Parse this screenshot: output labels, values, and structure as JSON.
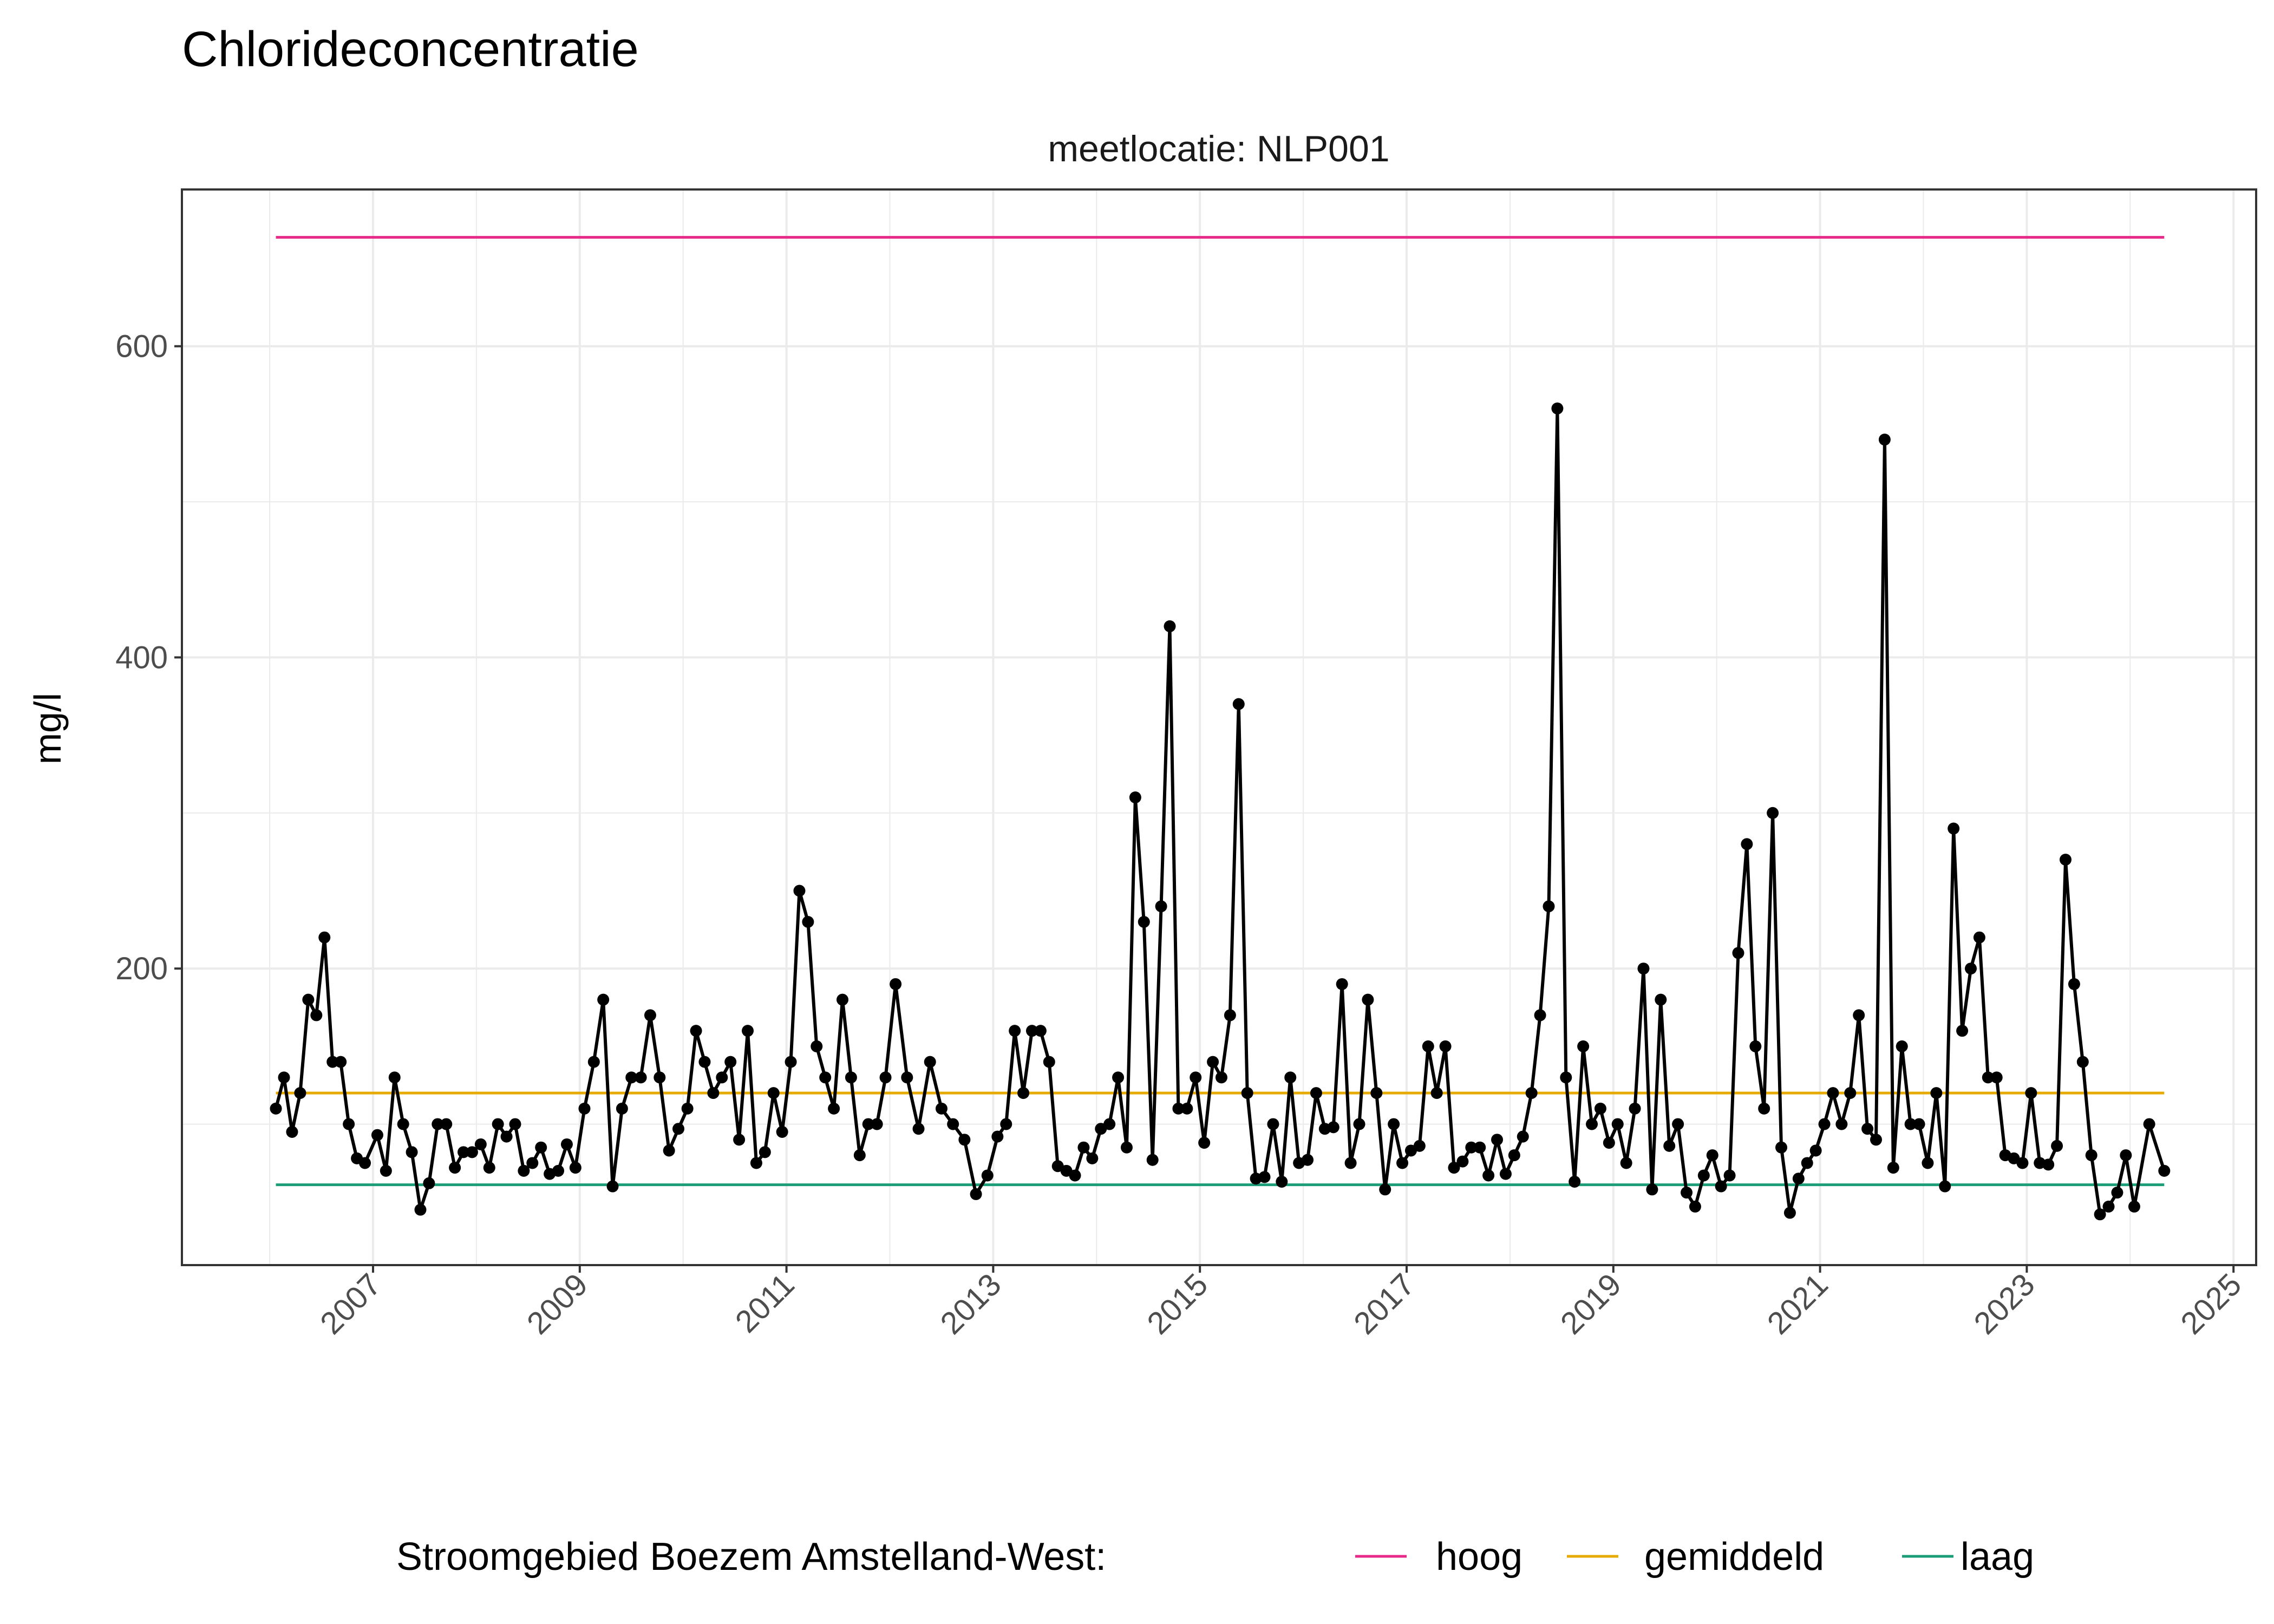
{
  "chart_data": {
    "type": "line",
    "title": "Chlorideconcentratie",
    "facet_label": "meetlocatie: NLP001",
    "xlabel": "",
    "ylabel": "mg/l",
    "xlim": [
      2005.7,
      2025.1
    ],
    "ylim": [
      -10,
      700
    ],
    "x_ticks": [
      "2007",
      "2009",
      "2011",
      "2013",
      "2015",
      "2017",
      "2019",
      "2021",
      "2023",
      "2025"
    ],
    "y_ticks": [
      "200",
      "400",
      "600"
    ],
    "grid": true,
    "legend_position": "bottom",
    "legend_title": "Stroomgebied Boezem Amstelland-West:",
    "reference_lines": [
      {
        "name": "hoog",
        "value": 670,
        "color": "#E7298A"
      },
      {
        "name": "gemiddeld",
        "value": 120,
        "color": "#E6AB02"
      },
      {
        "name": "laag",
        "value": 61,
        "color": "#1B9E77"
      }
    ],
    "series": [
      {
        "color": "#000000",
        "points_by_year": {
          "2006": [
            110,
            130,
            95,
            120,
            180,
            170,
            220,
            140,
            140,
            100,
            78,
            75
          ],
          "2007": [
            93,
            70,
            130,
            100,
            82,
            45,
            62,
            100,
            100,
            72,
            82,
            82
          ],
          "2008": [
            87,
            72,
            100,
            92,
            100,
            70,
            75,
            85,
            68,
            70,
            87,
            72
          ],
          "2009": [
            110,
            140,
            180,
            60,
            110,
            130,
            130,
            170,
            130,
            83,
            97
          ],
          "2010": [
            110,
            160,
            140,
            120,
            130,
            140,
            90,
            160,
            75,
            82,
            120,
            95
          ],
          "2011": [
            140,
            250,
            230,
            150,
            130,
            110,
            180,
            130,
            80,
            100,
            100,
            130
          ],
          "2012": [
            190,
            130,
            97,
            140,
            110,
            100,
            90,
            55,
            67
          ],
          "2013": [
            92,
            100,
            160,
            120,
            160,
            160,
            140,
            73,
            70,
            67,
            85,
            78
          ],
          "2014": [
            97,
            100,
            130,
            85,
            310,
            230,
            77,
            240,
            420,
            110,
            110,
            130
          ],
          "2015": [
            88,
            140,
            130,
            170,
            370,
            120,
            65,
            66,
            100,
            63,
            130,
            75
          ],
          "2016": [
            77,
            120,
            97,
            98,
            190,
            75,
            100,
            180,
            120,
            58,
            100,
            75
          ],
          "2017": [
            83,
            86,
            150,
            120,
            150,
            72,
            76,
            85,
            85,
            67,
            90,
            68
          ],
          "2018": [
            80,
            92,
            120,
            170,
            240,
            560,
            130,
            63,
            150,
            100,
            110,
            88
          ],
          "2019": [
            100,
            75,
            110,
            200,
            58,
            180,
            86,
            100,
            56,
            47,
            67,
            80
          ],
          "2020": [
            60,
            67,
            210,
            280,
            150,
            110,
            300,
            85,
            43,
            65,
            75,
            83
          ],
          "2021": [
            100,
            120,
            100,
            120,
            170,
            97,
            90,
            540,
            72,
            150,
            100,
            100
          ],
          "2022": [
            75,
            120,
            60,
            290,
            160,
            200,
            220,
            130,
            130,
            80,
            78,
            75
          ],
          "2023": [
            120,
            75,
            74,
            86,
            270,
            190,
            140,
            80,
            42,
            47,
            56,
            80
          ],
          "2024": [
            47,
            100,
            70
          ]
        }
      }
    ]
  }
}
